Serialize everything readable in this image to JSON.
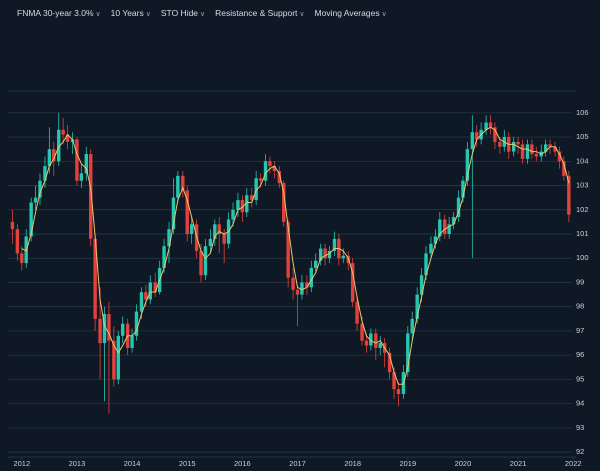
{
  "menu": [
    "FNMA 30-year 3.0%",
    "10 Years",
    "STO Hide",
    "Resistance & Support",
    "Moving Averages"
  ],
  "chart_data": {
    "type": "candlestick",
    "x": [
      2011.83,
      2011.92,
      2012,
      2012.08,
      2012.17,
      2012.25,
      2012.33,
      2012.42,
      2012.5,
      2012.58,
      2012.67,
      2012.75,
      2012.83,
      2012.92,
      2013,
      2013.08,
      2013.17,
      2013.25,
      2013.33,
      2013.42,
      2013.5,
      2013.58,
      2013.67,
      2013.75,
      2013.83,
      2013.92,
      2014,
      2014.08,
      2014.17,
      2014.25,
      2014.33,
      2014.42,
      2014.5,
      2014.58,
      2014.67,
      2014.75,
      2014.83,
      2014.92,
      2015,
      2015.08,
      2015.17,
      2015.25,
      2015.33,
      2015.42,
      2015.5,
      2015.58,
      2015.67,
      2015.75,
      2015.83,
      2015.92,
      2016,
      2016.08,
      2016.17,
      2016.25,
      2016.33,
      2016.42,
      2016.5,
      2016.58,
      2016.67,
      2016.75,
      2016.83,
      2016.92,
      2017,
      2017.08,
      2017.17,
      2017.25,
      2017.33,
      2017.42,
      2017.5,
      2017.58,
      2017.67,
      2017.75,
      2017.83,
      2017.92,
      2018,
      2018.08,
      2018.17,
      2018.25,
      2018.33,
      2018.42,
      2018.5,
      2018.58,
      2018.67,
      2018.75,
      2018.83,
      2018.92,
      2019,
      2019.08,
      2019.17,
      2019.25,
      2019.33,
      2019.42,
      2019.5,
      2019.58,
      2019.67,
      2019.75,
      2019.83,
      2019.92,
      2020,
      2020.08,
      2020.17,
      2020.25,
      2020.33,
      2020.42,
      2020.5,
      2020.58,
      2020.67,
      2020.75,
      2020.83,
      2020.92,
      2021,
      2021.08,
      2021.17,
      2021.25,
      2021.33,
      2021.42,
      2021.5,
      2021.58,
      2021.67,
      2021.75,
      2021.83,
      2021.92
    ],
    "open": [
      101.5,
      101.2,
      100.2,
      99.8,
      100.9,
      102.3,
      102.5,
      103.2,
      103.8,
      104.5,
      104.0,
      105.3,
      105.1,
      104.8,
      104.9,
      103.2,
      103.5,
      104.3,
      100.8,
      97.5,
      96.5,
      97.7,
      96.6,
      95.0,
      96.8,
      97.3,
      96.3,
      96.8,
      97.8,
      98.6,
      98.3,
      99.0,
      98.6,
      99.6,
      100.5,
      101.2,
      102.5,
      103.4,
      102.8,
      101.0,
      101.4,
      100.3,
      99.3,
      100.5,
      100.8,
      101.4,
      101.0,
      100.6,
      101.6,
      102.0,
      102.4,
      101.9,
      102.6,
      102.4,
      103.3,
      103.2,
      104.0,
      103.8,
      103.6,
      103.1,
      101.5,
      99.2,
      98.7,
      98.5,
      99.0,
      98.8,
      99.6,
      99.9,
      100.4,
      100.0,
      100.3,
      100.8,
      100.0,
      100.1,
      99.8,
      98.2,
      97.3,
      96.6,
      96.4,
      96.9,
      96.3,
      96.5,
      96.1,
      95.3,
      94.6,
      94.4,
      95.3,
      96.9,
      97.5,
      98.5,
      99.3,
      100.2,
      100.6,
      100.9,
      101.6,
      101.0,
      101.4,
      101.7,
      102.5,
      103.2,
      104.5,
      105.2,
      104.9,
      105.3,
      105.6,
      105.4,
      104.8,
      104.6,
      105.0,
      104.4,
      104.8,
      104.7,
      104.1,
      104.7,
      104.3,
      104.2,
      104.4,
      104.7,
      104.6,
      104.4,
      104.0,
      103.4
    ],
    "high": [
      102.0,
      101.4,
      100.5,
      101.2,
      102.5,
      103.0,
      103.5,
      104.2,
      105.4,
      104.8,
      106.0,
      105.8,
      105.5,
      105.2,
      105.0,
      103.9,
      104.6,
      104.5,
      101.0,
      98.8,
      98.0,
      98.2,
      97.2,
      97.0,
      97.6,
      97.5,
      97.1,
      98.1,
      98.8,
      98.9,
      99.3,
      99.4,
      99.9,
      100.8,
      101.5,
      103.3,
      103.6,
      103.6,
      103.0,
      101.7,
      101.6,
      100.6,
      100.8,
      101.2,
      101.6,
      101.7,
      101.2,
      101.9,
      102.3,
      102.7,
      102.6,
      102.9,
      102.9,
      103.6,
      103.5,
      104.3,
      104.2,
      104.0,
      103.8,
      103.2,
      101.6,
      99.6,
      98.9,
      99.3,
      99.3,
      99.9,
      100.2,
      100.6,
      100.6,
      100.5,
      101.1,
      101.0,
      100.4,
      100.3,
      100.0,
      98.4,
      97.6,
      96.9,
      97.1,
      97.1,
      96.8,
      96.7,
      96.3,
      95.5,
      94.9,
      95.6,
      97.2,
      97.8,
      98.8,
      99.6,
      100.5,
      100.9,
      101.2,
      101.9,
      101.8,
      101.7,
      101.9,
      102.8,
      103.4,
      104.8,
      105.9,
      105.5,
      105.6,
      105.9,
      105.9,
      105.6,
      105.0,
      105.3,
      105.2,
      105.0,
      105.0,
      104.9,
      104.9,
      104.9,
      104.6,
      104.7,
      104.9,
      104.9,
      104.8,
      104.6,
      104.2,
      103.6
    ],
    "low": [
      100.6,
      99.9,
      99.5,
      99.6,
      100.7,
      102.0,
      102.2,
      102.9,
      103.5,
      103.4,
      103.8,
      104.7,
      104.5,
      104.3,
      103.0,
      102.9,
      103.2,
      100.5,
      97.0,
      95.0,
      94.1,
      93.6,
      94.7,
      94.8,
      96.5,
      96.0,
      96.1,
      96.6,
      97.5,
      98.0,
      98.1,
      98.4,
      98.5,
      99.4,
      99.8,
      101.0,
      102.3,
      102.5,
      100.7,
      100.6,
      100.0,
      99.0,
      99.1,
      100.2,
      100.5,
      100.2,
      99.8,
      100.4,
      101.3,
      101.7,
      101.5,
      101.7,
      102.1,
      102.2,
      102.9,
      103.0,
      103.5,
      103.3,
      102.9,
      101.3,
      98.8,
      98.3,
      97.2,
      98.3,
      98.5,
      98.6,
      99.4,
      99.7,
      99.7,
      99.8,
      100.1,
      99.7,
      99.8,
      99.5,
      98.0,
      97.0,
      96.4,
      96.1,
      96.2,
      95.8,
      96.0,
      95.5,
      95.0,
      94.2,
      93.9,
      94.2,
      95.1,
      96.6,
      97.3,
      98.2,
      99.1,
      100.0,
      100.4,
      100.7,
      100.8,
      100.8,
      101.2,
      101.5,
      102.3,
      103.0,
      100.0,
      104.6,
      104.7,
      105.1,
      105.1,
      104.5,
      104.3,
      104.4,
      104.1,
      104.2,
      104.3,
      103.9,
      103.9,
      104.1,
      104.0,
      104.0,
      104.2,
      104.3,
      104.2,
      103.7,
      103.2,
      101.5
    ],
    "close": [
      101.2,
      100.2,
      99.8,
      100.9,
      102.3,
      102.5,
      103.2,
      103.8,
      104.5,
      104.0,
      105.3,
      105.1,
      104.8,
      104.9,
      103.2,
      103.5,
      104.3,
      100.8,
      97.5,
      96.5,
      97.7,
      96.6,
      95.0,
      96.8,
      97.3,
      96.3,
      96.8,
      97.8,
      98.6,
      98.3,
      99.0,
      98.6,
      99.6,
      100.5,
      101.2,
      102.5,
      103.4,
      102.8,
      101.0,
      101.4,
      100.3,
      99.3,
      100.5,
      100.8,
      101.4,
      101.0,
      100.6,
      101.6,
      102.0,
      102.4,
      101.9,
      102.6,
      102.4,
      103.3,
      103.2,
      104.0,
      103.8,
      103.6,
      103.1,
      101.5,
      99.2,
      98.7,
      98.5,
      99.0,
      98.8,
      99.6,
      99.9,
      100.4,
      100.0,
      100.3,
      100.8,
      100.0,
      100.1,
      99.8,
      98.2,
      97.3,
      96.6,
      96.4,
      96.9,
      96.3,
      96.5,
      96.1,
      95.3,
      94.6,
      94.4,
      95.3,
      96.9,
      97.5,
      98.5,
      99.3,
      100.2,
      100.6,
      100.9,
      101.6,
      101.0,
      101.4,
      101.7,
      102.5,
      103.2,
      104.5,
      105.2,
      104.9,
      105.3,
      105.6,
      105.4,
      104.8,
      104.6,
      105.0,
      104.4,
      104.8,
      104.7,
      104.1,
      104.7,
      104.3,
      104.2,
      104.4,
      104.7,
      104.6,
      104.4,
      104.0,
      103.4,
      101.8
    ],
    "ma": [
      null,
      null,
      100.4,
      100.3,
      101.0,
      101.9,
      102.7,
      103.2,
      103.8,
      104.1,
      104.6,
      104.8,
      105.1,
      104.9,
      104.3,
      103.9,
      103.7,
      102.9,
      100.9,
      98.3,
      97.2,
      96.9,
      96.4,
      96.1,
      96.4,
      96.8,
      96.8,
      97.0,
      97.7,
      98.2,
      98.6,
      98.6,
      99.1,
      99.6,
      100.4,
      101.4,
      102.4,
      102.9,
      102.4,
      101.7,
      100.9,
      100.3,
      100.0,
      100.2,
      100.9,
      101.1,
      101.0,
      101.1,
      101.4,
      102.0,
      102.1,
      102.3,
      102.3,
      102.8,
      103.0,
      103.5,
      103.7,
      103.8,
      103.5,
      102.7,
      101.3,
      99.8,
      98.8,
      98.7,
      98.8,
      99.1,
      99.4,
      100.0,
      100.1,
      100.2,
      100.4,
      100.4,
      100.3,
      100.0,
      99.4,
      98.4,
      97.4,
      96.8,
      96.6,
      96.5,
      96.6,
      96.3,
      96.0,
      95.3,
      94.8,
      94.8,
      95.5,
      96.6,
      97.6,
      98.4,
      99.3,
      100.0,
      100.6,
      101.0,
      101.2,
      101.3,
      101.4,
      101.9,
      102.5,
      103.4,
      104.3,
      104.9,
      105.1,
      105.3,
      105.4,
      105.3,
      104.9,
      104.8,
      104.7,
      104.7,
      104.6,
      104.5,
      104.5,
      104.4,
      104.4,
      104.3,
      104.4,
      104.6,
      104.6,
      104.3,
      103.9,
      103.1
    ],
    "up_color": "#26c6b0",
    "down_color": "#e5413c",
    "ma_color": "#e8c76a",
    "xlim": [
      2011.75,
      2022.05
    ],
    "xticks": [
      2012,
      2013,
      2014,
      2015,
      2016,
      2017,
      2018,
      2019,
      2020,
      2021,
      2022
    ],
    "ylim": [
      91.8,
      106.9
    ],
    "yticks": [
      92,
      93,
      94,
      95,
      96,
      97,
      98,
      99,
      100,
      101,
      102,
      103,
      104,
      105,
      106
    ],
    "grid": true
  }
}
